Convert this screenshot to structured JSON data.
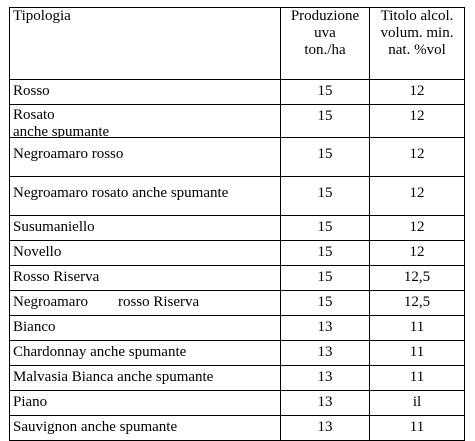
{
  "table": {
    "headers": {
      "tipologia": "Tipologia",
      "produzione_lines": [
        "Produzione",
        "uva",
        "ton./ha"
      ],
      "titolo_lines": [
        "Titolo alcol.",
        "volum. min.",
        "nat. %vol"
      ]
    },
    "rows": [
      {
        "lines": [
          "Rosso"
        ],
        "produzione": "15",
        "titolo": "12"
      },
      {
        "lines": [
          "Rosato",
          "anche spumante"
        ],
        "produzione": "15",
        "titolo": "12"
      },
      {
        "lines": [
          "Negroamaro rosso"
        ],
        "produzione": "15",
        "titolo": "12"
      },
      {
        "lines": [
          "Negroamaro rosato anche spumante"
        ],
        "produzione": "15",
        "titolo": "12"
      },
      {
        "lines": [
          "Susumaniello"
        ],
        "produzione": "15",
        "titolo": "12"
      },
      {
        "lines": [
          "Novello"
        ],
        "produzione": "15",
        "titolo": "12"
      },
      {
        "lines": [
          "Rosso Riserva"
        ],
        "produzione": "15",
        "titolo": "12,5"
      },
      {
        "lines": [
          "Negroamaro        rosso Riserva"
        ],
        "produzione": "15",
        "titolo": "12,5"
      },
      {
        "lines": [
          "Bianco"
        ],
        "produzione": "13",
        "titolo": "11"
      },
      {
        "lines": [
          "Chardonnay anche spumante"
        ],
        "produzione": "13",
        "titolo": "11"
      },
      {
        "lines": [
          "Malvasia Bianca anche spumante"
        ],
        "produzione": "13",
        "titolo": "11"
      },
      {
        "lines": [
          "Piano"
        ],
        "produzione": "13",
        "titolo": "il"
      },
      {
        "lines": [
          "Sauvignon anche spumante"
        ],
        "produzione": "13",
        "titolo": "11"
      }
    ]
  }
}
